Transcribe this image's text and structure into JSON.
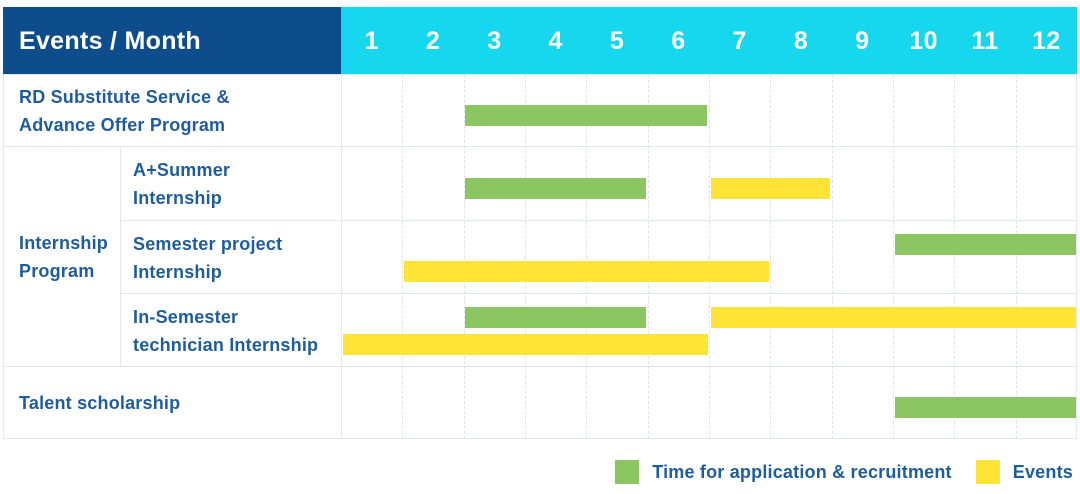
{
  "header": {
    "title": "Events / Month"
  },
  "colors": {
    "header_navy": "#0d4d8c",
    "header_cyan": "#16d7ee",
    "application_green": "#8cc663",
    "events_yellow": "#ffe438",
    "label_blue": "#1e5c9c"
  },
  "chart_data": {
    "type": "bar",
    "variant": "gantt-timeline",
    "title": "Events / Month",
    "x_axis_label": "Month",
    "months": [
      "1",
      "2",
      "3",
      "4",
      "5",
      "6",
      "7",
      "8",
      "9",
      "10",
      "11",
      "12"
    ],
    "legend_position": "bottom-right",
    "series_legend": [
      {
        "series": "application",
        "label": "Time for application & recruitment",
        "color": "#8cc663"
      },
      {
        "series": "events",
        "label": "Events",
        "color": "#ffe438"
      }
    ],
    "group_label_lines": [
      "Internship",
      "Program"
    ],
    "rows": [
      {
        "label_lines": [
          "RD Substitute Service &",
          "Advance Offer Program"
        ],
        "group": "",
        "bars": [
          {
            "series": "application",
            "start_month": 3,
            "end_month": 6,
            "lane": "single"
          }
        ]
      },
      {
        "label_lines": [
          "A+Summer",
          "Internship"
        ],
        "group": "Internship Program",
        "bars": [
          {
            "series": "application",
            "start_month": 3,
            "end_month": 5,
            "lane": "single"
          },
          {
            "series": "events",
            "start_month": 7,
            "end_month": 8,
            "lane": "single"
          }
        ]
      },
      {
        "label_lines": [
          "Semester project",
          "Internship"
        ],
        "group": "Internship Program",
        "bars": [
          {
            "series": "application",
            "start_month": 10,
            "end_month": 12,
            "lane": "upper"
          },
          {
            "series": "events",
            "start_month": 2,
            "end_month": 7,
            "lane": "lower"
          }
        ]
      },
      {
        "label_lines": [
          "In-Semester",
          "technician Internship"
        ],
        "group": "Internship Program",
        "bars": [
          {
            "series": "application",
            "start_month": 3,
            "end_month": 5,
            "lane": "upper"
          },
          {
            "series": "events",
            "start_month": 7,
            "end_month": 12,
            "lane": "upper"
          },
          {
            "series": "events",
            "start_month": 1,
            "end_month": 6,
            "lane": "lower"
          }
        ]
      },
      {
        "label_lines": [
          "Talent scholarship"
        ],
        "group": "",
        "bars": [
          {
            "series": "application",
            "start_month": 10,
            "end_month": 12,
            "lane": "single"
          }
        ]
      }
    ]
  }
}
